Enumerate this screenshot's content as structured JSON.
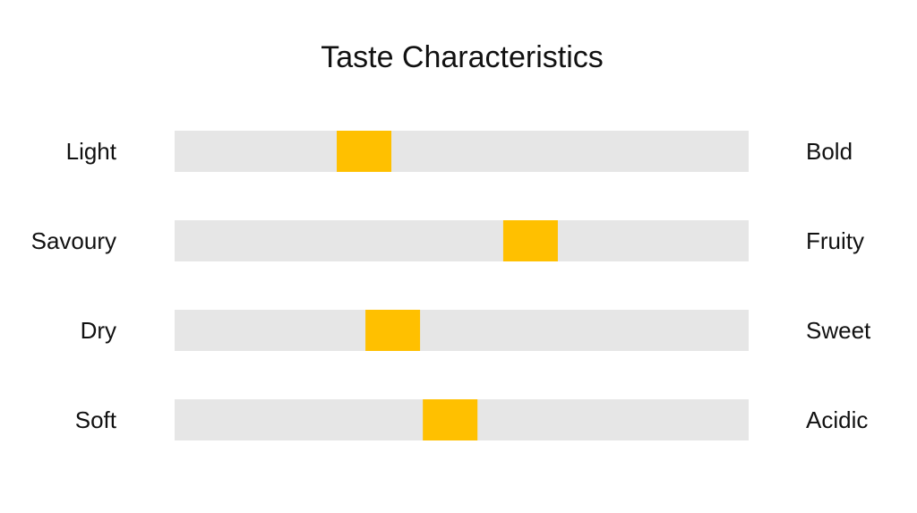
{
  "chart_data": {
    "type": "slider",
    "title": "Taste Characteristics",
    "left_labels": [
      "Light",
      "Savoury",
      "Dry",
      "Soft"
    ],
    "right_labels": [
      "Bold",
      "Fruity",
      "Sweet",
      "Acidic"
    ],
    "values": [
      3.3,
      6.2,
      3.8,
      4.8
    ],
    "xlim": [
      0,
      10
    ],
    "color": "#ffc000",
    "track_color": "#e6e6e6"
  }
}
